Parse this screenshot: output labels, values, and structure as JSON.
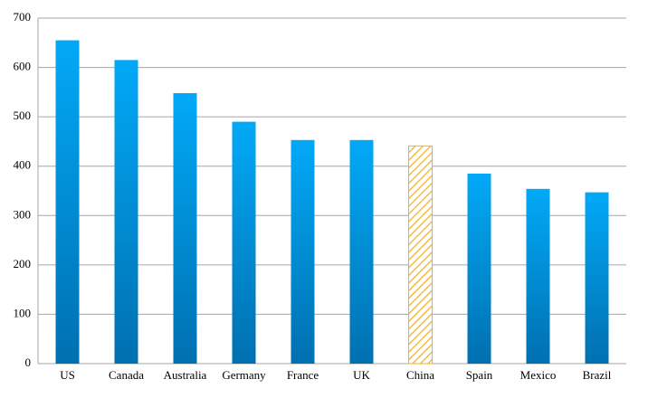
{
  "chart_data": {
    "type": "bar",
    "categories": [
      "US",
      "Canada",
      "Australia",
      "Germany",
      "France",
      "UK",
      "China",
      "Spain",
      "Mexico",
      "Brazil"
    ],
    "values": [
      655,
      615,
      548,
      490,
      453,
      453,
      441,
      385,
      354,
      347
    ],
    "gradient": [
      "#02a9f7",
      "#0070b0"
    ],
    "hatch_color": "#f2b01e",
    "hatched": [
      false,
      false,
      false,
      false,
      false,
      false,
      true,
      false,
      false,
      false
    ],
    "ylim": [
      0,
      700
    ],
    "yticks": [
      0,
      100,
      200,
      300,
      400,
      500,
      600,
      700
    ],
    "grid": true
  }
}
